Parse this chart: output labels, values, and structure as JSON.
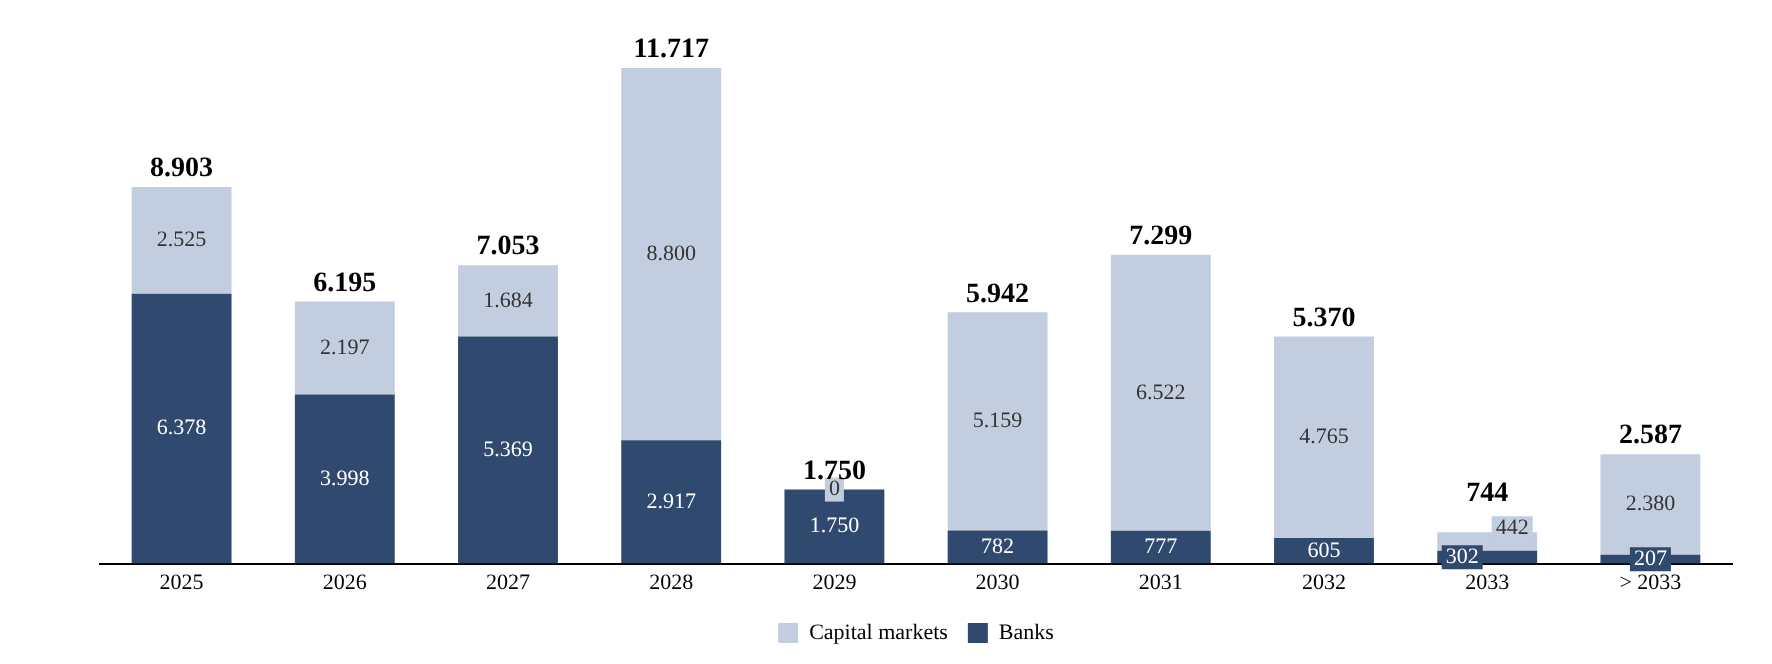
{
  "chart_data": {
    "type": "bar",
    "stacked": true,
    "categories": [
      "2025",
      "2026",
      "2027",
      "2028",
      "2029",
      "2030",
      "2031",
      "2032",
      "2033",
      "> 2033"
    ],
    "series": [
      {
        "name": "Banks",
        "color": "#2f4a6e",
        "values": [
          6378,
          3998,
          5369,
          2917,
          1750,
          782,
          777,
          605,
          302,
          207
        ],
        "value_labels": [
          "6.378",
          "3.998",
          "5.369",
          "2.917",
          "1.750",
          "782",
          "777",
          "605",
          "302",
          "207"
        ]
      },
      {
        "name": "Capital markets",
        "color": "#c2cde0",
        "values": [
          2525,
          2197,
          1684,
          8800,
          0,
          5159,
          6522,
          4765,
          442,
          2380
        ],
        "value_labels": [
          "2.525",
          "2.197",
          "1.684",
          "8.800",
          "0",
          "5.159",
          "6.522",
          "4.765",
          "442",
          "2.380"
        ]
      }
    ],
    "totals": [
      "8.903",
      "6.195",
      "7.053",
      "11.717",
      "1.750",
      "5.942",
      "7.299",
      "5.370",
      "744",
      "2.587"
    ],
    "legend": "bottom",
    "grid": false
  }
}
